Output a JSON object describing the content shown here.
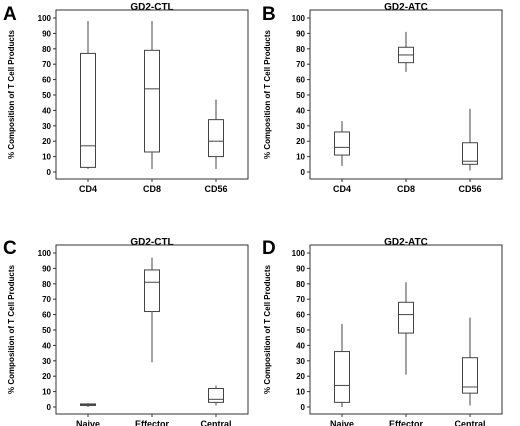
{
  "panels": [
    {
      "letter": "A",
      "chart_data": {
        "type": "box",
        "title": "GD2-CTL",
        "ylabel": "% Composition of T Cell Products",
        "categories": [
          "CD4",
          "CD8",
          "CD56"
        ],
        "ylim": [
          0,
          100
        ],
        "yticks": [
          0,
          10,
          20,
          30,
          40,
          50,
          60,
          70,
          80,
          90,
          100
        ],
        "boxes": [
          {
            "category": "CD4",
            "min": 2,
            "q1": 3,
            "median": 17,
            "q3": 77,
            "max": 98
          },
          {
            "category": "CD8",
            "min": 2,
            "q1": 13,
            "median": 54,
            "q3": 79,
            "max": 98
          },
          {
            "category": "CD56",
            "min": 2,
            "q1": 10,
            "median": 20,
            "q3": 34,
            "max": 47
          }
        ]
      }
    },
    {
      "letter": "B",
      "chart_data": {
        "type": "box",
        "title": "GD2-ATC",
        "ylabel": "% Composition of T Cell Products",
        "categories": [
          "CD4",
          "CD8",
          "CD56"
        ],
        "ylim": [
          0,
          100
        ],
        "yticks": [
          0,
          10,
          20,
          30,
          40,
          50,
          60,
          70,
          80,
          90,
          100
        ],
        "boxes": [
          {
            "category": "CD4",
            "min": 4,
            "q1": 11,
            "median": 16,
            "q3": 26,
            "max": 33
          },
          {
            "category": "CD8",
            "min": 65,
            "q1": 71,
            "median": 76,
            "q3": 81,
            "max": 91
          },
          {
            "category": "CD56",
            "min": 1,
            "q1": 5,
            "median": 7,
            "q3": 19,
            "max": 41
          }
        ]
      }
    },
    {
      "letter": "C",
      "chart_data": {
        "type": "box",
        "title": "GD2-CTL",
        "ylabel": "% Composition of T Cell Products",
        "categories": [
          "Naive",
          "Effector",
          "Central"
        ],
        "ylim": [
          0,
          100
        ],
        "yticks": [
          0,
          10,
          20,
          30,
          40,
          50,
          60,
          70,
          80,
          90,
          100
        ],
        "boxes": [
          {
            "category": "Naive",
            "min": 0,
            "q1": 1,
            "median": 1.5,
            "q3": 2,
            "max": 2.5
          },
          {
            "category": "Effector",
            "min": 29,
            "q1": 62,
            "median": 81,
            "q3": 89,
            "max": 97
          },
          {
            "category": "Central",
            "min": 1,
            "q1": 3,
            "median": 5,
            "q3": 12,
            "max": 14
          }
        ]
      }
    },
    {
      "letter": "D",
      "chart_data": {
        "type": "box",
        "title": "GD2-ATC",
        "ylabel": "% Composition of T Cell Products",
        "categories": [
          "Naive",
          "Effector",
          "Central"
        ],
        "ylim": [
          0,
          100
        ],
        "yticks": [
          0,
          10,
          20,
          30,
          40,
          50,
          60,
          70,
          80,
          90,
          100
        ],
        "boxes": [
          {
            "category": "Naive",
            "min": 0,
            "q1": 3,
            "median": 14,
            "q3": 36,
            "max": 54
          },
          {
            "category": "Effector",
            "min": 21,
            "q1": 48,
            "median": 60,
            "q3": 68,
            "max": 81
          },
          {
            "category": "Central",
            "min": 1,
            "q1": 9,
            "median": 13,
            "q3": 32,
            "max": 58
          }
        ]
      }
    }
  ]
}
